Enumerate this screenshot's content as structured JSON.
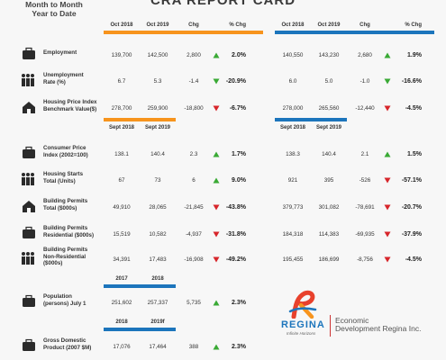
{
  "header": {
    "title": "CRA REPORT CARD",
    "month_to_month": "Month to Month",
    "year_to_date": "Year to Date"
  },
  "sections": [
    {
      "columns": [
        [
          "Oct 2018",
          "Oct 2019",
          "Chg",
          "% Chg"
        ],
        [
          "Oct 2018",
          "Oct 2019",
          "Chg",
          "% Chg"
        ]
      ],
      "rows": [
        {
          "label": [
            "Employment"
          ],
          "values": [
            [
              "139,700",
              "142,500",
              "2,800",
              "2.0%"
            ],
            [
              "140,550",
              "143,230",
              "2,680",
              "1.9%"
            ]
          ],
          "arrows": [
            {
              "dir": "up",
              "color": "#3aaa35"
            },
            {
              "dir": "up",
              "color": "#3aaa35"
            }
          ]
        },
        {
          "label": [
            "Unemployment",
            "Rate (%)"
          ],
          "values": [
            [
              "6.7",
              "5.3",
              "-1.4",
              "-20.9%"
            ],
            [
              "6.0",
              "5.0",
              "-1.0",
              "-16.6%"
            ]
          ],
          "arrows": [
            {
              "dir": "down",
              "color": "#3aaa35"
            },
            {
              "dir": "down",
              "color": "#3aaa35"
            }
          ]
        },
        {
          "label": [
            "Housing Price Index",
            "Benchmark Value($)"
          ],
          "values": [
            [
              "278,700",
              "259,900",
              "-18,800",
              "-6.7%"
            ],
            [
              "278,000",
              "265,560",
              "-12,440",
              "-4.5%"
            ]
          ],
          "arrows": [
            {
              "dir": "down",
              "color": "#d7262b"
            },
            {
              "dir": "down",
              "color": "#d7262b"
            }
          ]
        }
      ]
    },
    {
      "columns": [
        [
          "Sept 2018",
          "Sept 2019"
        ],
        [
          "Sept 2018",
          "Sept 2019"
        ]
      ],
      "rows": [
        {
          "label": [
            "Consumer Price",
            "Index (2002=100)"
          ],
          "values": [
            [
              "138.1",
              "140.4",
              "2.3",
              "1.7%"
            ],
            [
              "138.3",
              "140.4",
              "2.1",
              "1.5%"
            ]
          ],
          "arrows": [
            {
              "dir": "up",
              "color": "#3aaa35"
            },
            {
              "dir": "up",
              "color": "#3aaa35"
            }
          ]
        },
        {
          "label": [
            "Housing Starts",
            "Total (Units)"
          ],
          "values": [
            [
              "67",
              "73",
              "6",
              "9.0%"
            ],
            [
              "921",
              "395",
              "-526",
              "-57.1%"
            ]
          ],
          "arrows": [
            {
              "dir": "up",
              "color": "#3aaa35"
            },
            {
              "dir": "down",
              "color": "#d7262b"
            }
          ]
        },
        {
          "label": [
            "Building Permits",
            "Total ($000s)"
          ],
          "values": [
            [
              "49,910",
              "28,065",
              "-21,845",
              "-43.8%"
            ],
            [
              "379,773",
              "301,082",
              "-78,691",
              "-20.7%"
            ]
          ],
          "arrows": [
            {
              "dir": "down",
              "color": "#d7262b"
            },
            {
              "dir": "down",
              "color": "#d7262b"
            }
          ]
        },
        {
          "label": [
            "Building Permits",
            "Residential ($000s)"
          ],
          "values": [
            [
              "15,519",
              "10,582",
              "-4,937",
              "-31.8%"
            ],
            [
              "184,318",
              "114,383",
              "-69,935",
              "-37.9%"
            ]
          ],
          "arrows": [
            {
              "dir": "down",
              "color": "#d7262b"
            },
            {
              "dir": "down",
              "color": "#d7262b"
            }
          ]
        },
        {
          "label": [
            "Building Permits",
            "Non-Residential",
            "($000s)"
          ],
          "values": [
            [
              "34,391",
              "17,483",
              "-16,908",
              "-49.2%"
            ],
            [
              "195,455",
              "186,699",
              "-8,756",
              "-4.5%"
            ]
          ],
          "arrows": [
            {
              "dir": "down",
              "color": "#d7262b"
            },
            {
              "dir": "down",
              "color": "#d7262b"
            }
          ]
        }
      ]
    },
    {
      "columns": [
        [
          "2017",
          "2018"
        ]
      ],
      "rows": [
        {
          "label": [
            "Population",
            "(persons) July 1"
          ],
          "values": [
            [
              "251,602",
              "257,337",
              "5,735",
              "2.3%"
            ]
          ],
          "arrows": [
            {
              "dir": "up",
              "color": "#3aaa35"
            }
          ]
        }
      ]
    },
    {
      "columns": [
        [
          "2018",
          "2019f"
        ]
      ],
      "rows": [
        {
          "label": [
            "Gross Domestic",
            "Product (2007 $M)"
          ],
          "values": [
            [
              "17,076",
              "17,464",
              "388",
              "2.3%"
            ]
          ],
          "arrows": [
            {
              "dir": "up",
              "color": "#3aaa35"
            }
          ]
        }
      ]
    }
  ],
  "logo": {
    "name": "REGINA",
    "tagline": "Infinite Horizons",
    "organization": [
      "Economic",
      "Development Regina Inc."
    ]
  }
}
